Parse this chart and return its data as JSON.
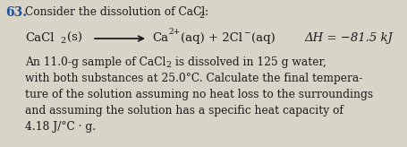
{
  "background_color": "#d8d4c8",
  "question_number": "63.",
  "question_number_color": "#1a4fa0",
  "question_number_fontsize": 10,
  "text_color": "#1a1a1a",
  "font_size_body": 8.8,
  "font_size_equation": 9.5,
  "intro_line": "Consider the dissolution of CaCl",
  "body_lines": [
    "with both substances at 25.0°C. Calculate the final tempera-",
    "ture of the solution assuming no heat loss to the surroundings",
    "and assuming the solution has a specific heat capacity of",
    "4.18 J/°C · g."
  ],
  "delta_h_text": "ΔH = −81.5 kJ"
}
